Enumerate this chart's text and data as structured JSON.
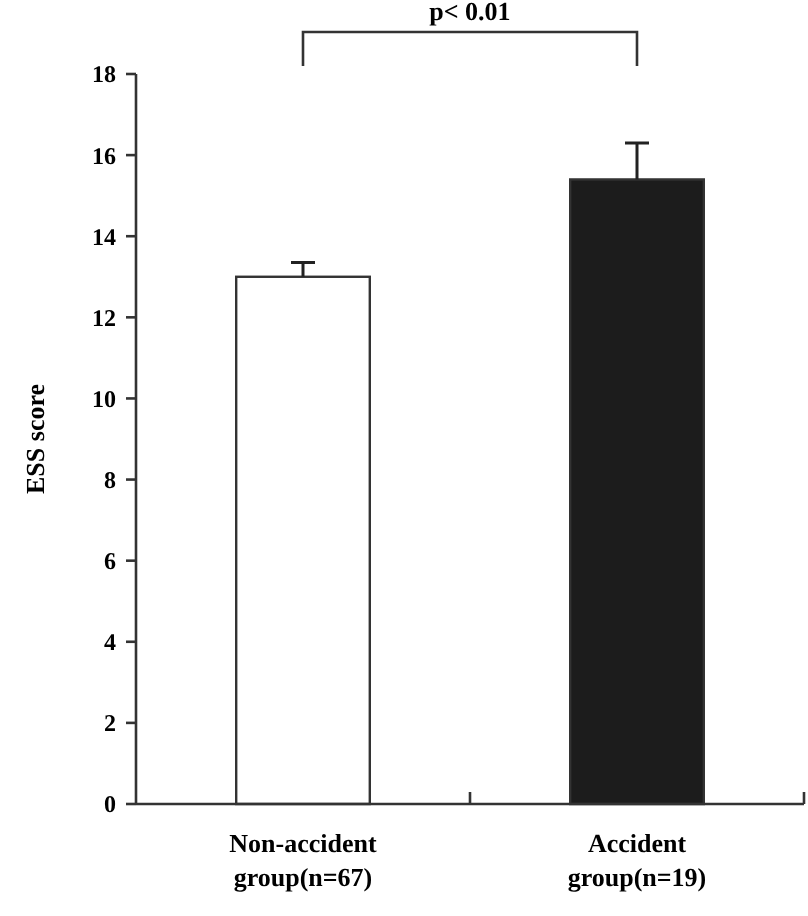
{
  "chart_data": {
    "type": "bar",
    "ylabel": "ESS score",
    "categories": [
      "Non-accident group(n=67)",
      "Accident group(n=19)"
    ],
    "values": [
      13.0,
      15.4
    ],
    "errors": [
      [
        13.0,
        13.35
      ],
      [
        15.4,
        16.3
      ]
    ],
    "colors": [
      "#ffffff",
      "#1c1c1c"
    ],
    "ylim": [
      0,
      18
    ],
    "yticks": [
      0,
      2,
      4,
      6,
      8,
      10,
      12,
      14,
      16,
      18
    ],
    "annotations": [
      "p< 0.01"
    ]
  }
}
